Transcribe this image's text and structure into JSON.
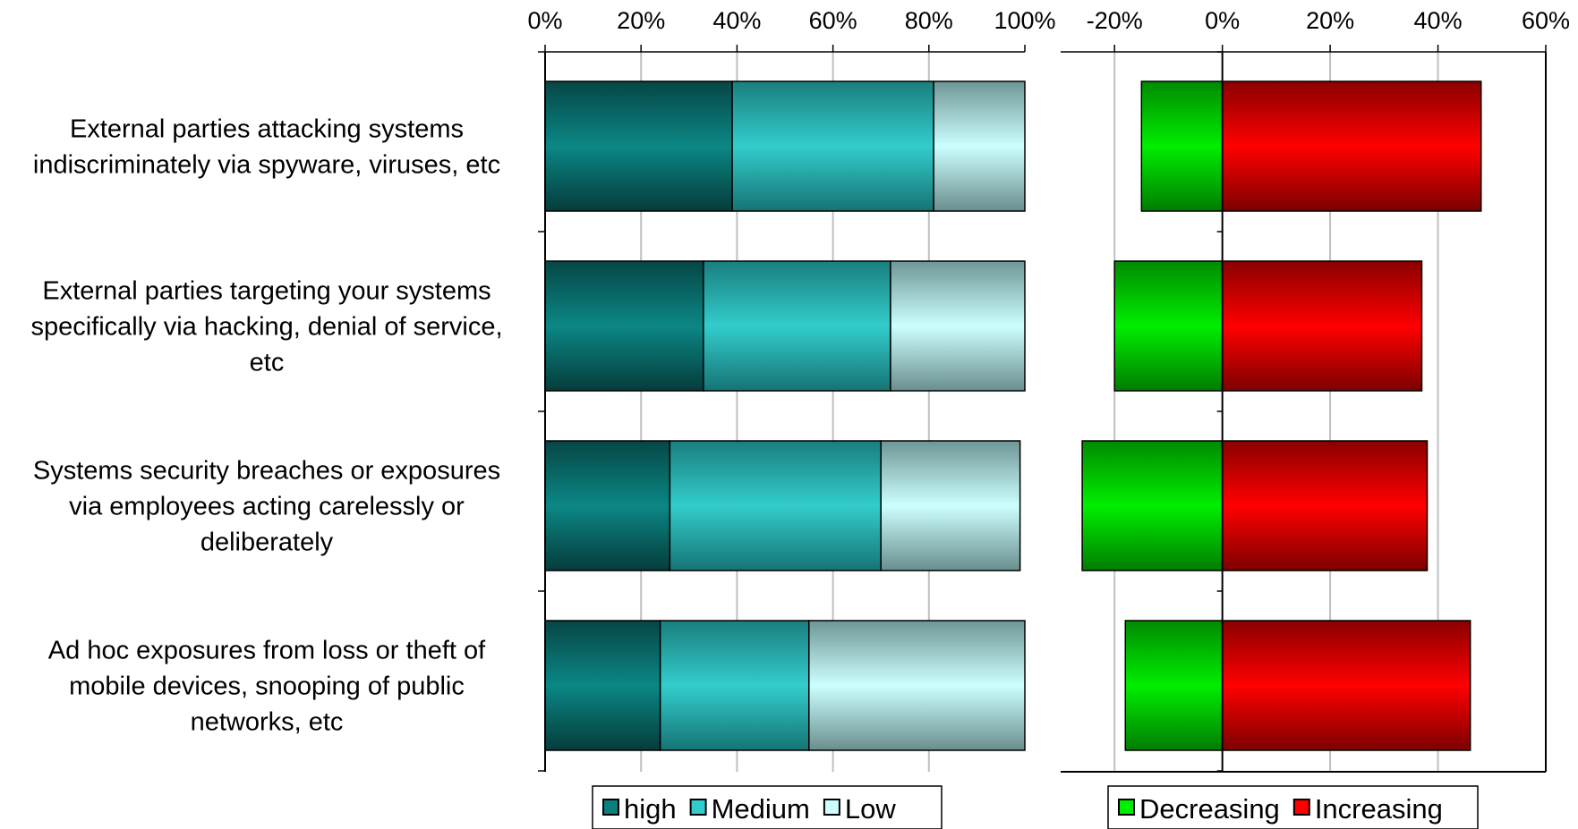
{
  "chart_data": [
    {
      "type": "bar",
      "stacked": true,
      "orientation": "horizontal",
      "categories": [
        [
          "External parties attacking systems",
          "indiscriminately via spyware, viruses, etc"
        ],
        [
          "External parties targeting your systems",
          "specifically via hacking, denial of service,",
          "etc"
        ],
        [
          "Systems security breaches or exposures",
          "via employees acting carelessly or",
          "deliberately"
        ],
        [
          "Ad hoc exposures from loss or theft of",
          "mobile devices, snooping of public",
          "networks, etc"
        ]
      ],
      "series": [
        {
          "name": "high",
          "values": [
            39,
            33,
            26,
            24
          ]
        },
        {
          "name": "Medium",
          "values": [
            42,
            39,
            44,
            31
          ]
        },
        {
          "name": "Low",
          "values": [
            19,
            28,
            29,
            45
          ]
        }
      ],
      "xlim": [
        0,
        100
      ],
      "x_ticks": [
        "0%",
        "20%",
        "40%",
        "60%",
        "80%",
        "100%"
      ],
      "grid": true,
      "legend": "bottom",
      "colors": {
        "high": "#0b7f7e",
        "Medium": "#33cccc",
        "Low": "#ccffff"
      }
    },
    {
      "type": "bar",
      "orientation": "horizontal",
      "categories": [
        [
          "External parties attacking systems",
          "indiscriminately via spyware, viruses, etc"
        ],
        [
          "External parties targeting your systems",
          "specifically via hacking, denial of service,",
          "etc"
        ],
        [
          "Systems security breaches or exposures",
          "via employees acting carelessly or",
          "deliberately"
        ],
        [
          "Ad hoc exposures from loss or theft of",
          "mobile devices, snooping of public",
          "networks, etc"
        ]
      ],
      "series": [
        {
          "name": "Decreasing",
          "values": [
            -15,
            -20,
            -26,
            -18
          ]
        },
        {
          "name": "Increasing",
          "values": [
            48,
            37,
            38,
            46
          ]
        }
      ],
      "xlim": [
        -30,
        60
      ],
      "x_ticks": [
        "-20%",
        "0%",
        "20%",
        "40%",
        "60%"
      ],
      "grid": true,
      "legend": "bottom",
      "colors": {
        "Decreasing": "#00ee00",
        "Increasing": "#ff0000"
      }
    }
  ]
}
